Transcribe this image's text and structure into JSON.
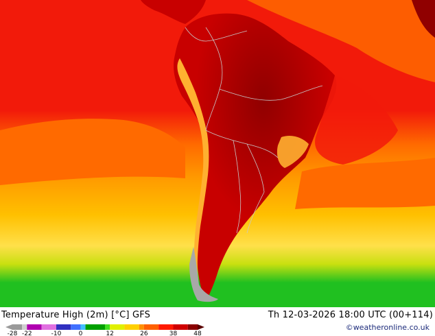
{
  "title": "Temperature High (2m) [°C] GFS",
  "datetime": "Th 12-03-2026 18:00 UTC (00+114)",
  "credit": "©weatheronline.co.uk",
  "legend": {
    "ticks": [
      "-28",
      "-22",
      "-10",
      "0",
      "12",
      "26",
      "38",
      "48"
    ],
    "tick_values": [
      -28,
      -22,
      -10,
      0,
      12,
      26,
      38,
      48
    ],
    "min": -28,
    "max": 48,
    "stops": [
      {
        "v": -28,
        "c": "#9a9a9a"
      },
      {
        "v": -24,
        "c": "#cfcfcf"
      },
      {
        "v": -22,
        "c": "#b000b0"
      },
      {
        "v": -16,
        "c": "#e070e0"
      },
      {
        "v": -10,
        "c": "#3030c0"
      },
      {
        "v": -4,
        "c": "#4070ff"
      },
      {
        "v": 0,
        "c": "#40c0ff"
      },
      {
        "v": 2,
        "c": "#00a000"
      },
      {
        "v": 10,
        "c": "#40e020"
      },
      {
        "v": 12,
        "c": "#e0f000"
      },
      {
        "v": 18,
        "c": "#ffd000"
      },
      {
        "v": 24,
        "c": "#ff9000"
      },
      {
        "v": 26,
        "c": "#ff6000"
      },
      {
        "v": 32,
        "c": "#ff1a00"
      },
      {
        "v": 38,
        "c": "#d00000"
      },
      {
        "v": 44,
        "c": "#8a0000"
      },
      {
        "v": 48,
        "c": "#5a0000"
      }
    ]
  },
  "colors": {
    "ocean_warm": "#f21a0a",
    "ocean_orange": "#ff6a00",
    "ocean_amber": "#ff9a00",
    "ocean_yellow": "#ffc000",
    "ocean_pale": "#ffe04a",
    "southern_lime": "#c8e010",
    "southern_green": "#20c020",
    "land_hot": "#c80000",
    "land_darkest": "#900000",
    "andes_cool": "#ffb030",
    "patagonia_grey": "#a8a8a8",
    "border": "#c8c8c8"
  }
}
